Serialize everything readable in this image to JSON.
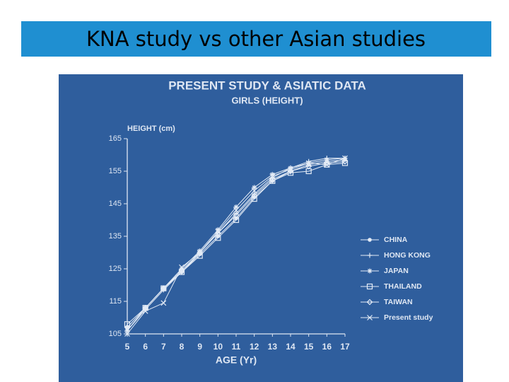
{
  "slide": {
    "title": "KNA study vs other Asian studies"
  },
  "chart_data": {
    "type": "line",
    "title": "PRESENT STUDY & ASIATIC DATA",
    "subtitle": "GIRLS (HEIGHT)",
    "y_label": "HEIGHT (cm)",
    "x_label": "AGE (Yr)",
    "x": [
      5,
      6,
      7,
      8,
      9,
      10,
      11,
      12,
      13,
      14,
      15,
      16,
      17
    ],
    "xlim": [
      5,
      17
    ],
    "xticks": [
      5,
      6,
      7,
      8,
      9,
      10,
      11,
      12,
      13,
      14,
      15,
      16,
      17
    ],
    "ylim": [
      105,
      165
    ],
    "yticks": [
      105,
      115,
      125,
      135,
      145,
      155,
      165
    ],
    "legend": "right",
    "series": [
      {
        "name": "CHINA",
        "color": "#e3ebf6",
        "marker": "dot",
        "values": [
          107,
          113,
          119,
          124,
          129.5,
          135,
          140.5,
          147,
          152,
          155,
          157,
          158,
          158.5
        ]
      },
      {
        "name": "HONG KONG",
        "color": "#e3ebf6",
        "marker": "plus",
        "values": [
          106,
          112.5,
          118.5,
          124,
          130,
          136,
          142,
          148,
          153,
          156,
          158,
          159,
          159
        ]
      },
      {
        "name": "JAPAN",
        "color": "#e3ebf6",
        "marker": "asterisk",
        "values": [
          106,
          113,
          119,
          125,
          130.5,
          137,
          144,
          150,
          154,
          156,
          157.5,
          158.5,
          159
        ]
      },
      {
        "name": "THAILAND",
        "color": "#e3ebf6",
        "marker": "square",
        "values": [
          108,
          113,
          119,
          124,
          129,
          134.5,
          140,
          146.5,
          152,
          154.5,
          155,
          157,
          157.5
        ]
      },
      {
        "name": "TAIWAN",
        "color": "#e3ebf6",
        "marker": "diamond",
        "values": [
          107,
          113,
          119,
          124.5,
          130,
          136,
          141.5,
          147.5,
          152.5,
          155,
          156.5,
          157.5,
          158
        ]
      },
      {
        "name": "Present study",
        "color": "#e3ebf6",
        "marker": "x",
        "values": [
          105,
          112,
          114.5,
          125.5,
          130,
          136.5,
          143,
          149,
          153.5,
          155.5,
          157.5,
          157,
          159
        ]
      }
    ]
  }
}
